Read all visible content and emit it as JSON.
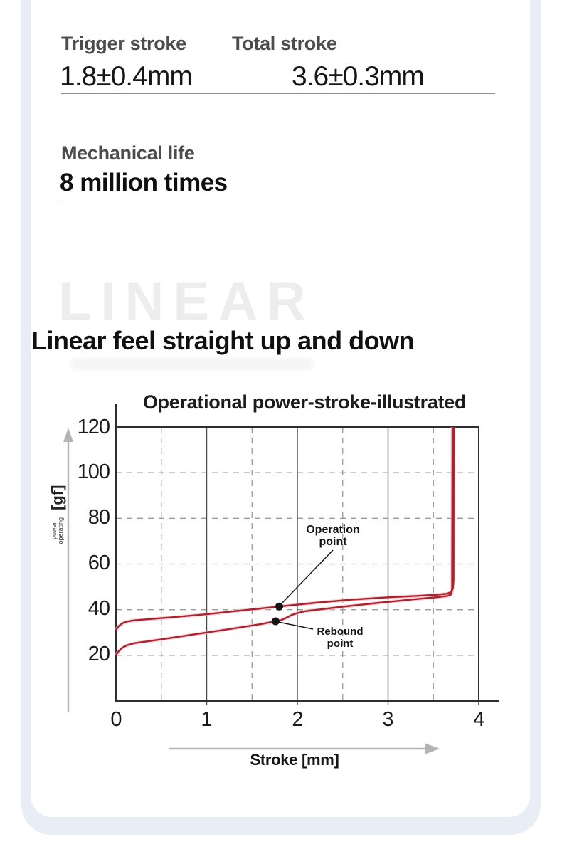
{
  "specs": {
    "trigger": {
      "label": "Trigger stroke",
      "value": "1.8±0.4mm"
    },
    "total": {
      "label": "Total stroke",
      "value": "3.6±0.3mm"
    },
    "life": {
      "label": "Mechanical life",
      "value": "8 million times"
    }
  },
  "watermark": "LINEAR",
  "heading": "Linear feel straight up and down",
  "chart_data": {
    "type": "line",
    "title": "Operational power-stroke-illustrated",
    "xlabel": "Stroke [mm]",
    "ylabel": "[gf]",
    "ylabel_sub_lines": [
      "operating",
      "power"
    ],
    "xlim": [
      0,
      4
    ],
    "ylim": [
      0,
      120
    ],
    "x_ticks": [
      0,
      1,
      2,
      3,
      4
    ],
    "y_ticks": [
      20,
      40,
      60,
      80,
      100,
      120
    ],
    "grid": true,
    "legend": "none",
    "curve_color": "#b01f2e",
    "series": [
      {
        "name": "press",
        "points": [
          [
            0,
            31
          ],
          [
            0.03,
            32.8
          ],
          [
            0.07,
            34
          ],
          [
            0.12,
            34.8
          ],
          [
            0.2,
            35.3
          ],
          [
            0.6,
            36.6
          ],
          [
            1.0,
            38
          ],
          [
            1.4,
            39.7
          ],
          [
            1.8,
            41.4
          ],
          [
            2.2,
            43
          ],
          [
            2.6,
            44.4
          ],
          [
            3.0,
            45.4
          ],
          [
            3.3,
            46
          ],
          [
            3.55,
            46.6
          ],
          [
            3.65,
            47
          ],
          [
            3.7,
            47.8
          ],
          [
            3.715,
            49.5
          ],
          [
            3.722,
            53
          ],
          [
            3.724,
            120
          ]
        ]
      },
      {
        "name": "release",
        "points": [
          [
            0,
            20
          ],
          [
            0.03,
            21.8
          ],
          [
            0.07,
            23.3
          ],
          [
            0.12,
            24.4
          ],
          [
            0.2,
            25.3
          ],
          [
            0.5,
            27
          ],
          [
            0.9,
            29.4
          ],
          [
            1.3,
            31.8
          ],
          [
            1.6,
            33.7
          ],
          [
            1.76,
            34.9
          ],
          [
            1.82,
            35.4
          ],
          [
            1.88,
            36.5
          ],
          [
            1.94,
            37.7
          ],
          [
            2.0,
            38.5
          ],
          [
            2.08,
            39.3
          ],
          [
            2.5,
            41.3
          ],
          [
            2.9,
            43
          ],
          [
            3.3,
            44.6
          ],
          [
            3.55,
            45.5
          ],
          [
            3.65,
            46
          ],
          [
            3.69,
            46.5
          ],
          [
            3.7,
            47.2
          ],
          [
            3.706,
            49.5
          ],
          [
            3.71,
            120
          ]
        ]
      }
    ],
    "annotations": [
      {
        "id": "operation",
        "line1": "Operation",
        "line2": "point",
        "x": 1.8,
        "y": 41.4
      },
      {
        "id": "rebound",
        "line1": "Rebound",
        "line2": "point",
        "x": 1.76,
        "y": 34.9
      }
    ]
  }
}
